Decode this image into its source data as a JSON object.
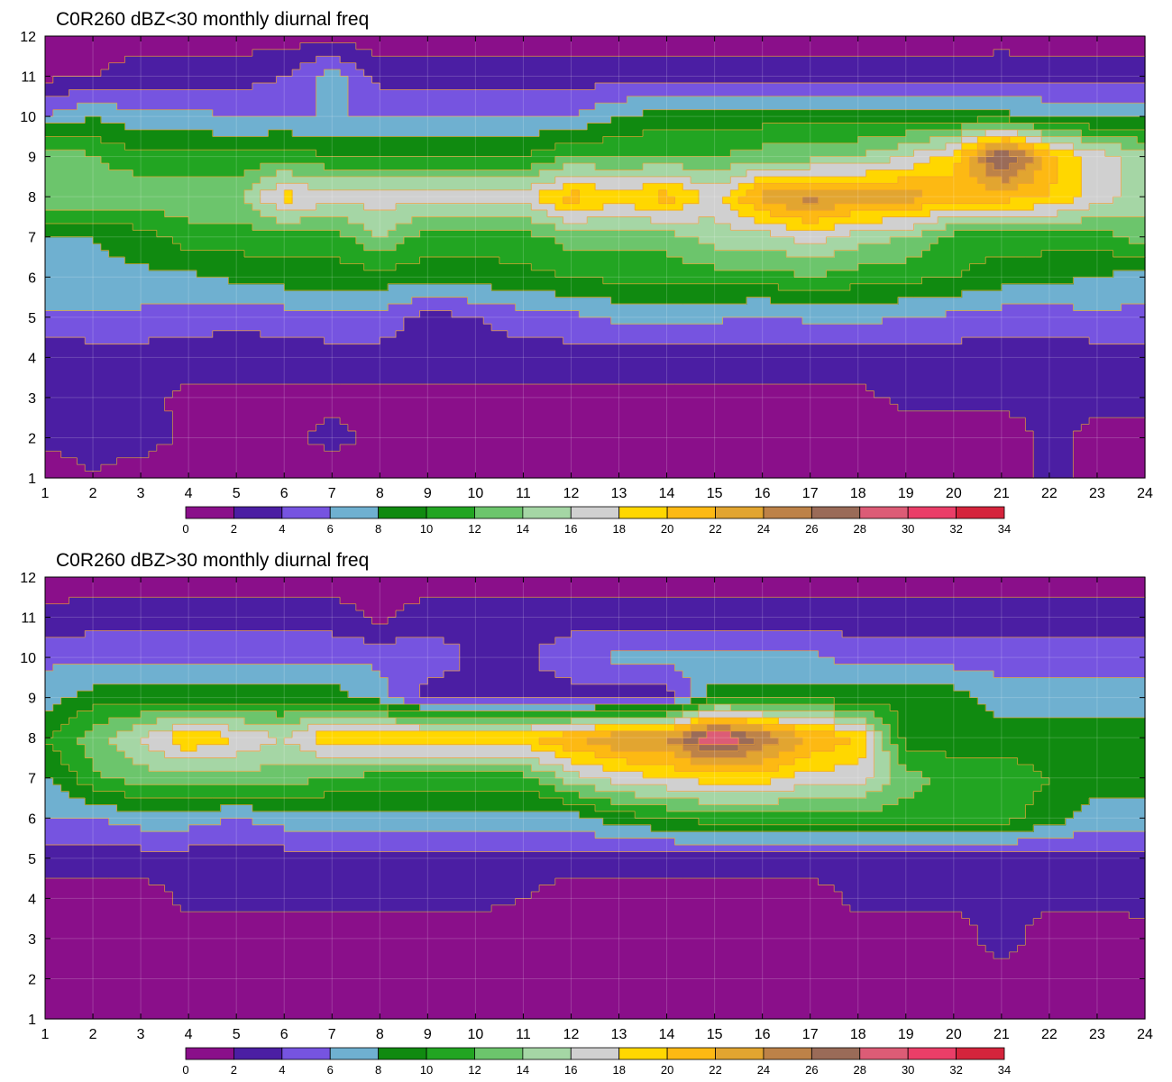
{
  "chart_data": [
    {
      "type": "heatmap",
      "title": "C0R260 dBZ<30 monthly diurnal freq",
      "x_ticks": [
        "1",
        "2",
        "3",
        "4",
        "5",
        "6",
        "7",
        "8",
        "9",
        "10",
        "11",
        "12",
        "13",
        "14",
        "15",
        "16",
        "17",
        "18",
        "19",
        "20",
        "21",
        "22",
        "23",
        "24"
      ],
      "y_ticks": [
        "1",
        "2",
        "3",
        "4",
        "5",
        "6",
        "7",
        "8",
        "9",
        "10",
        "11",
        "12"
      ],
      "xlim": [
        1,
        24
      ],
      "ylim": [
        1,
        12
      ],
      "colorbar_ticks": [
        "0",
        "2",
        "4",
        "6",
        "8",
        "10",
        "12",
        "14",
        "16",
        "18",
        "20",
        "22",
        "24",
        "26",
        "28",
        "30",
        "32",
        "34"
      ],
      "colorbar_colors": [
        "#8a0f8a",
        "#4b1ea3",
        "#7654e0",
        "#6fb0d0",
        "#108a10",
        "#22a522",
        "#6cc56c",
        "#a5d6a5",
        "#d0d0d0",
        "#ffd700",
        "#fdb913",
        "#e2a530",
        "#bd8248",
        "#9a6b58",
        "#dc5c76",
        "#ea3e68",
        "#d5243c"
      ],
      "x": [
        1,
        2,
        3,
        4,
        5,
        6,
        7,
        8,
        9,
        10,
        11,
        12,
        13,
        14,
        15,
        16,
        17,
        18,
        19,
        20,
        21,
        22,
        23,
        24
      ],
      "y": [
        1,
        2,
        3,
        4,
        5,
        6,
        7,
        8,
        9,
        10,
        11,
        12
      ],
      "z": [
        [
          1,
          2,
          1,
          0.4,
          1,
          2,
          1,
          2,
          1,
          2,
          1,
          1,
          1.5,
          1.5,
          1.5,
          2,
          2,
          2,
          2,
          2,
          2,
          2,
          2,
          2
        ],
        [
          2.5,
          2.5,
          3,
          1.5,
          1.5,
          1.5,
          2.5,
          1.5,
          1.5,
          1,
          1,
          1,
          1,
          1,
          1,
          1,
          1,
          1,
          1,
          1,
          1,
          2.5,
          1.5,
          1.5
        ],
        [
          2.5,
          3,
          2.5,
          1.5,
          1.5,
          1.5,
          1.5,
          1.5,
          1.5,
          1.5,
          1.5,
          1.5,
          1.5,
          1.5,
          1.5,
          1.5,
          1.5,
          1.5,
          2.5,
          2.5,
          2.5,
          2.5,
          2.5,
          2.5
        ],
        [
          2.5,
          3,
          3,
          3,
          3,
          3,
          3,
          3,
          3,
          3,
          3,
          3,
          3,
          3,
          3,
          3,
          3,
          3,
          3,
          3,
          3,
          3,
          3,
          3
        ],
        [
          5.5,
          5.5,
          5.5,
          5,
          4.5,
          5,
          5.5,
          5.5,
          3,
          4,
          5,
          5.5,
          6.5,
          7,
          6.5,
          5.5,
          6.5,
          6.5,
          6,
          5.5,
          5,
          5,
          5.5,
          5.5
        ],
        [
          7.5,
          7.5,
          7.5,
          7.5,
          8.5,
          9,
          9,
          9,
          9,
          9,
          9.5,
          10,
          10.5,
          10.5,
          11,
          11,
          12,
          11,
          10.5,
          10,
          9,
          8.5,
          8,
          7
        ],
        [
          8,
          8,
          9,
          11,
          11,
          11,
          11,
          14,
          11,
          11,
          11,
          13,
          13,
          13,
          15,
          15,
          17,
          15,
          14,
          11,
          11,
          11,
          11,
          13
        ],
        [
          14,
          14,
          13.5,
          13.5,
          13.5,
          19,
          17,
          17,
          17,
          17,
          17,
          21,
          19,
          21,
          17,
          23,
          25,
          23,
          23,
          21,
          21,
          20,
          17,
          15
        ],
        [
          14,
          12,
          10.5,
          10.5,
          10.5,
          11,
          10,
          10,
          10,
          10,
          10,
          12,
          12,
          12,
          12,
          13,
          13,
          14,
          16,
          19,
          29,
          21,
          17,
          15
        ],
        [
          6,
          8,
          6.5,
          6.5,
          6,
          6,
          6,
          6,
          6,
          6,
          6,
          6,
          8,
          9,
          9,
          9,
          9,
          9,
          9,
          9,
          8.5,
          8,
          7.5,
          7.5
        ],
        [
          1.5,
          2,
          3,
          3,
          3,
          4,
          7,
          3,
          3,
          3,
          3,
          3,
          3,
          3,
          3,
          3,
          3,
          3,
          3,
          3,
          3.5,
          3,
          3,
          3
        ],
        [
          1,
          1,
          1,
          1,
          1,
          1,
          1,
          1,
          1,
          1,
          1,
          1,
          1,
          1,
          1,
          1,
          1,
          1,
          1,
          1,
          1,
          1,
          1,
          1
        ]
      ]
    },
    {
      "type": "heatmap",
      "title": "C0R260 dBZ>30 monthly diurnal freq",
      "x_ticks": [
        "1",
        "2",
        "3",
        "4",
        "5",
        "6",
        "7",
        "8",
        "9",
        "10",
        "11",
        "12",
        "13",
        "14",
        "15",
        "16",
        "17",
        "18",
        "19",
        "20",
        "21",
        "22",
        "23",
        "24"
      ],
      "y_ticks": [
        "1",
        "2",
        "3",
        "4",
        "5",
        "6",
        "7",
        "8",
        "9",
        "10",
        "11",
        "12"
      ],
      "xlim": [
        1,
        24
      ],
      "ylim": [
        1,
        12
      ],
      "colorbar_ticks": [
        "0",
        "2",
        "4",
        "6",
        "8",
        "10",
        "12",
        "14",
        "16",
        "18",
        "20",
        "22",
        "24",
        "26",
        "28",
        "30",
        "32",
        "34"
      ],
      "colorbar_colors": [
        "#8a0f8a",
        "#4b1ea3",
        "#7654e0",
        "#6fb0d0",
        "#108a10",
        "#22a522",
        "#6cc56c",
        "#a5d6a5",
        "#d0d0d0",
        "#ffd700",
        "#fdb913",
        "#e2a530",
        "#bd8248",
        "#9a6b58",
        "#dc5c76",
        "#ea3e68",
        "#d5243c"
      ],
      "x": [
        1,
        2,
        3,
        4,
        5,
        6,
        7,
        8,
        9,
        10,
        11,
        12,
        13,
        14,
        15,
        16,
        17,
        18,
        19,
        20,
        21,
        22,
        23,
        24
      ],
      "y": [
        1,
        2,
        3,
        4,
        5,
        6,
        7,
        8,
        9,
        10,
        11,
        12
      ],
      "z": [
        [
          1,
          1,
          1,
          1,
          1,
          1,
          1,
          1,
          1,
          1,
          1,
          1,
          1,
          1,
          1,
          1,
          1,
          1,
          1,
          1,
          1,
          1,
          1,
          1
        ],
        [
          1,
          1,
          1,
          1,
          1,
          1,
          1,
          1,
          1,
          1,
          1,
          1,
          1,
          1,
          1,
          1,
          1,
          1,
          1,
          1,
          1,
          1,
          1,
          1
        ],
        [
          1,
          1,
          1,
          1,
          1,
          1,
          1,
          1,
          1,
          1,
          1,
          1,
          1,
          1,
          1,
          1,
          1,
          1,
          1,
          1,
          3,
          1,
          1,
          1.5
        ],
        [
          1,
          1,
          1,
          2.5,
          2.5,
          2.5,
          2.5,
          2.5,
          2.5,
          2.5,
          2,
          1,
          1,
          1,
          1,
          1,
          1,
          2.5,
          2.5,
          2.5,
          2.5,
          2.5,
          2.5,
          2.5
        ],
        [
          3,
          3,
          3,
          3,
          3,
          3,
          3,
          3,
          3,
          3,
          3,
          3,
          3,
          3,
          3,
          3,
          3,
          3,
          3,
          3,
          3,
          3,
          3,
          3
        ],
        [
          6,
          6,
          7,
          7,
          6,
          7,
          7,
          7,
          7,
          7,
          7,
          7,
          9,
          10,
          11,
          11,
          11,
          11,
          11,
          11,
          11,
          9,
          7,
          7
        ],
        [
          7.5,
          11.5,
          13,
          13,
          13,
          13,
          12,
          11,
          11,
          11,
          11,
          15,
          17,
          18,
          19,
          19,
          17,
          17,
          13,
          11,
          11,
          10,
          9,
          9
        ],
        [
          10,
          13,
          16,
          20,
          18,
          16,
          20,
          20,
          20,
          20,
          20,
          22,
          24,
          24,
          31,
          26,
          22,
          20,
          9,
          9,
          9,
          9,
          9,
          9
        ],
        [
          7,
          9,
          9,
          9,
          9,
          9,
          9,
          7,
          3,
          3,
          3,
          3,
          3,
          3,
          9,
          9,
          9,
          9,
          9,
          9,
          7,
          7,
          7,
          7
        ],
        [
          5.5,
          5.5,
          5.5,
          5.5,
          5.5,
          5.5,
          5.5,
          5.5,
          5.5,
          3.5,
          3.5,
          5.5,
          6.5,
          6.5,
          6.5,
          6.5,
          6.5,
          5,
          5,
          5,
          5,
          5,
          5,
          5
        ],
        [
          2.5,
          3,
          3,
          3,
          3,
          3,
          3,
          1.5,
          3,
          3,
          3,
          3,
          3,
          3,
          3,
          3,
          3,
          3,
          3,
          3,
          3,
          3,
          3,
          3
        ],
        [
          1,
          1,
          1,
          1,
          1,
          1,
          1,
          1,
          1,
          1,
          1,
          1,
          1,
          1,
          1,
          1,
          1,
          1,
          1,
          1,
          1,
          1,
          1,
          1
        ]
      ]
    }
  ]
}
